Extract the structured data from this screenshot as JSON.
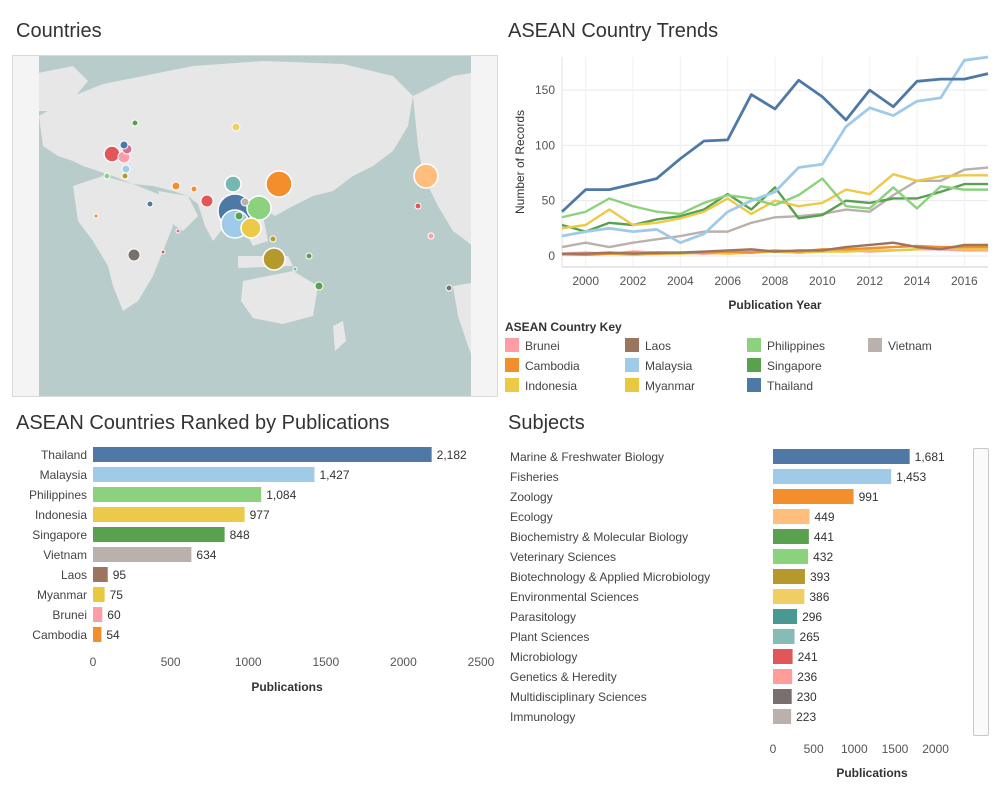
{
  "titles": {
    "countries": "Countries",
    "trends": "ASEAN Country Trends",
    "ranked": "ASEAN Countries Ranked by Publications",
    "subjects": "Subjects"
  },
  "colors": {
    "Brunei": "#ff9da7",
    "Cambodia": "#f28e2b",
    "Indonesia": "#edc948",
    "Laos": "#9c755f",
    "Malaysia": "#a0cbe8",
    "Myanmar": "#e8c93e",
    "Philippines": "#8cd17d",
    "Singapore": "#59a14f",
    "Thailand": "#4e79a7",
    "Vietnam": "#bab0ac"
  },
  "legend": {
    "title": "ASEAN Country Key",
    "items": [
      "Brunei",
      "Cambodia",
      "Indonesia",
      "Laos",
      "Malaysia",
      "Myanmar",
      "Philippines",
      "Singapore",
      "Thailand",
      "Vietnam"
    ]
  },
  "chart_data": [
    {
      "type": "line",
      "title": "ASEAN Country Trends",
      "xlabel": "Publication Year",
      "ylabel": "Number of Records",
      "xlim": [
        1999,
        2017
      ],
      "ylim": [
        -10,
        180
      ],
      "xticks": [
        2000,
        2002,
        2004,
        2006,
        2008,
        2010,
        2012,
        2014,
        2016
      ],
      "yticks": [
        0,
        50,
        100,
        150
      ],
      "x": [
        1999,
        2000,
        2001,
        2002,
        2003,
        2004,
        2005,
        2006,
        2007,
        2008,
        2009,
        2010,
        2011,
        2012,
        2013,
        2014,
        2015,
        2016,
        2017
      ],
      "series": [
        {
          "name": "Thailand",
          "values": [
            40,
            60,
            60,
            65,
            70,
            88,
            104,
            105,
            146,
            133,
            159,
            144,
            123,
            150,
            135,
            158,
            160,
            160,
            165
          ]
        },
        {
          "name": "Malaysia",
          "values": [
            18,
            22,
            25,
            22,
            24,
            12,
            20,
            40,
            50,
            58,
            80,
            83,
            117,
            134,
            127,
            140,
            143,
            177,
            180
          ]
        },
        {
          "name": "Philippines",
          "values": [
            35,
            40,
            52,
            45,
            40,
            38,
            48,
            55,
            52,
            46,
            55,
            70,
            45,
            43,
            62,
            43,
            63,
            60,
            60
          ]
        },
        {
          "name": "Indonesia",
          "values": [
            25,
            28,
            42,
            28,
            30,
            34,
            40,
            52,
            38,
            50,
            45,
            48,
            60,
            56,
            74,
            68,
            72,
            73,
            73
          ]
        },
        {
          "name": "Singapore",
          "values": [
            28,
            22,
            30,
            28,
            33,
            36,
            42,
            56,
            42,
            62,
            34,
            37,
            50,
            48,
            52,
            52,
            58,
            65,
            65
          ]
        },
        {
          "name": "Vietnam",
          "values": [
            8,
            12,
            8,
            12,
            15,
            18,
            22,
            22,
            30,
            35,
            36,
            38,
            42,
            40,
            55,
            68,
            68,
            78,
            80
          ]
        },
        {
          "name": "Laos",
          "values": [
            2,
            2,
            3,
            2,
            3,
            3,
            4,
            5,
            6,
            4,
            5,
            5,
            8,
            10,
            12,
            8,
            6,
            10,
            10
          ]
        },
        {
          "name": "Cambodia",
          "values": [
            2,
            1,
            2,
            3,
            2,
            3,
            3,
            4,
            3,
            5,
            4,
            6,
            6,
            7,
            8,
            9,
            8,
            8,
            8
          ]
        },
        {
          "name": "Myanmar",
          "values": [
            1,
            1,
            2,
            1,
            2,
            2,
            3,
            2,
            3,
            4,
            3,
            4,
            4,
            5,
            5,
            6,
            7,
            6,
            6
          ]
        },
        {
          "name": "Brunei",
          "values": [
            2,
            3,
            2,
            4,
            3,
            3,
            2,
            3,
            4,
            4,
            3,
            4,
            5,
            4,
            5,
            6,
            6,
            5,
            5
          ]
        }
      ]
    },
    {
      "type": "bar",
      "title": "ASEAN Countries Ranked by Publications",
      "xlabel": "Publications",
      "categories": [
        "Thailand",
        "Malaysia",
        "Philippines",
        "Indonesia",
        "Singapore",
        "Vietnam",
        "Laos",
        "Myanmar",
        "Brunei",
        "Cambodia"
      ],
      "values": [
        2182,
        1427,
        1084,
        977,
        848,
        634,
        95,
        75,
        60,
        54
      ],
      "labels": [
        "2,182",
        "1,427",
        "1,084",
        "977",
        "848",
        "634",
        "95",
        "75",
        "60",
        "54"
      ],
      "xlim": [
        0,
        2500
      ],
      "xticks": [
        0,
        500,
        1000,
        1500,
        2000,
        2500
      ]
    },
    {
      "type": "bar",
      "title": "Subjects",
      "xlabel": "Publications",
      "categories": [
        "Marine & Freshwater Biology",
        "Fisheries",
        "Zoology",
        "Ecology",
        "Biochemistry & Molecular Biology",
        "Veterinary Sciences",
        "Biotechnology & Applied Microbiology",
        "Environmental Sciences",
        "Parasitology",
        "Plant Sciences",
        "Microbiology",
        "Genetics & Heredity",
        "Multidisciplinary Sciences",
        "Immunology"
      ],
      "values": [
        1681,
        1453,
        991,
        449,
        441,
        432,
        393,
        386,
        296,
        265,
        241,
        236,
        230,
        223
      ],
      "labels": [
        "1,681",
        "1,453",
        "991",
        "449",
        "441",
        "432",
        "393",
        "386",
        "296",
        "265",
        "241",
        "236",
        "230",
        "223"
      ],
      "colors": [
        "#4e79a7",
        "#a0cbe8",
        "#f28e2b",
        "#ffbe7d",
        "#59a14f",
        "#8cd17d",
        "#b6992d",
        "#f1ce63",
        "#499894",
        "#86bcb6",
        "#e15759",
        "#ff9d9a",
        "#79706e",
        "#bab0ac"
      ],
      "xlim": [
        0,
        2300
      ],
      "xticks": [
        0,
        500,
        1000,
        1500,
        2000
      ]
    }
  ]
}
